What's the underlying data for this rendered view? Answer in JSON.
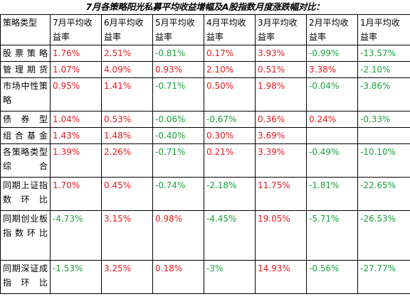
{
  "title": "7月各策略阳光私募平均收益增幅及A股指数月度涨跌幅对比：",
  "headers": [
    "策略类型",
    "7月平均收益率",
    "6月平均收益率",
    "5月平均收益率",
    "4月平均收益率",
    "3月平均收益率",
    "2月平均收益率",
    "1月平均收益率"
  ],
  "rows": [
    {
      "category": "股票策略",
      "values": [
        "1.76%",
        "2.51%",
        "-0.81%",
        "0.17%",
        "3.93%",
        "-0.99%",
        "-13.57%"
      ]
    },
    {
      "category": "管理期货",
      "values": [
        "1.07%",
        "4.09%",
        "0.93%",
        "2.10%",
        "0.51%",
        "3.38%",
        "-2.10%"
      ]
    },
    {
      "category": "市场中性策略",
      "values": [
        "0.95%",
        "1.41%",
        "-0.71%",
        "0.50%",
        "1.98%",
        "-0.04%",
        "-3.86%"
      ]
    },
    {
      "category": "债券型",
      "values": [
        "1.04%",
        "0.53%",
        "-0.06%",
        "-0.67%",
        "0.36%",
        "0.24%",
        "-0.33%"
      ]
    },
    {
      "category": "组合基金",
      "values": [
        "1.43%",
        "1.48%",
        "-0.40%",
        "0.30%",
        "3.69%",
        "",
        ""
      ]
    },
    {
      "category": "各策略类型综合",
      "values": [
        "1.39%",
        "2.26%",
        "-0.71%",
        "0.21%",
        "3.39%",
        "-0.49%",
        "-10.10%"
      ]
    },
    {
      "category": "同期上证指数环比",
      "values": [
        "1.70%",
        "0.45%",
        "-0.74%",
        "-2.18%",
        "11.75%",
        "-1.81%",
        "-22.65%"
      ]
    },
    {
      "category": "同期创业板指数环比",
      "values": [
        "-4.73%",
        "3.15%",
        "0.98%",
        "-4.45%",
        "19.05%",
        "-5.71%",
        "-26.53%"
      ]
    },
    {
      "category": "同期深证成指环比",
      "values": [
        "-1.53%",
        "3.25%",
        "0.18%",
        "-3%",
        "14.93%",
        "-0.56%",
        "-27.77%"
      ]
    }
  ],
  "colors": {
    "positive": "#e8191d",
    "negative": "#1aa13c"
  }
}
